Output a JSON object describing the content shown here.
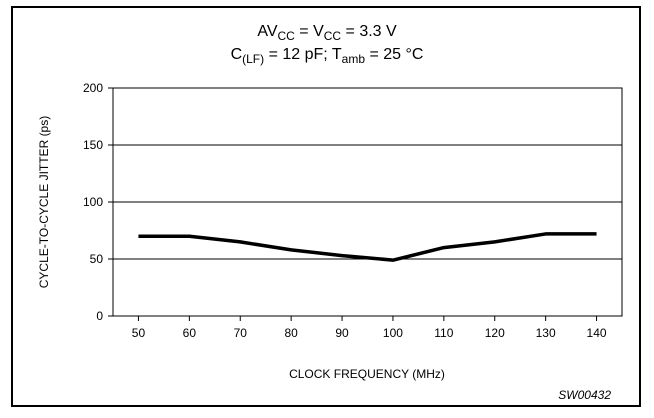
{
  "chart_data": {
    "type": "line",
    "title_line1": {
      "main": "AV",
      "sub1": "CC",
      "mid": " = V",
      "sub2": "CC",
      "rest": " = 3.3 V"
    },
    "title_line2": {
      "c": "C",
      "c_sub": "(LF)",
      "mid": " = 12 pF; T",
      "t_sub": "amb",
      "rest": " = 25 °C"
    },
    "xlabel": "CLOCK FREQUENCY (MHz)",
    "ylabel": "CYCLE-TO-CYCLE JITTER (ps)",
    "x": [
      50,
      60,
      70,
      80,
      90,
      100,
      110,
      120,
      130,
      140
    ],
    "series": [
      {
        "values": [
          70,
          70,
          65,
          58,
          53,
          49,
          60,
          65,
          72,
          72
        ]
      }
    ],
    "xticks": [
      "50",
      "60",
      "70",
      "80",
      "90",
      "100",
      "110",
      "120",
      "130",
      "140"
    ],
    "yticks": [
      "0",
      "50",
      "100",
      "150",
      "200"
    ],
    "xlim": [
      45,
      145
    ],
    "ylim": [
      0,
      200
    ],
    "grid": "horizontal",
    "line_color": "#000000",
    "code": "SW00432"
  }
}
